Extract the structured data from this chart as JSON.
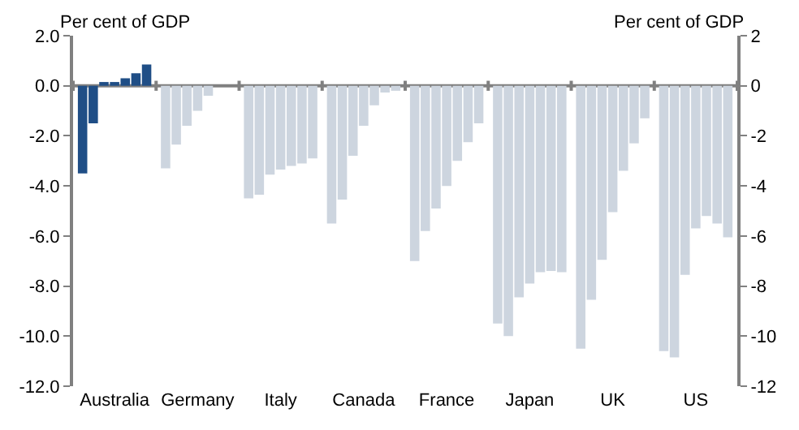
{
  "chart_data": {
    "type": "bar",
    "ylabel": "Per cent of GDP",
    "y2label": "Per cent of GDP",
    "categories": [
      "Australia",
      "Germany",
      "Italy",
      "Canada",
      "France",
      "Japan",
      "UK",
      "US"
    ],
    "series": [
      {
        "colors": [
          "#1f4e86",
          "#cdd5df",
          "#cdd5df",
          "#cdd5df",
          "#cdd5df",
          "#cdd5df",
          "#cdd5df",
          "#cdd5df"
        ],
        "values": [
          -3.5,
          -3.3,
          -4.5,
          -5.5,
          -7.0,
          -9.5,
          -10.5,
          -10.6
        ]
      },
      {
        "colors": [
          "#1f4e86",
          "#cdd5df",
          "#cdd5df",
          "#cdd5df",
          "#cdd5df",
          "#cdd5df",
          "#cdd5df",
          "#cdd5df"
        ],
        "values": [
          -1.5,
          -2.35,
          -4.35,
          -4.55,
          -5.8,
          -10.0,
          -8.55,
          -10.85
        ]
      },
      {
        "colors": [
          "#1f4e86",
          "#cdd5df",
          "#cdd5df",
          "#cdd5df",
          "#cdd5df",
          "#cdd5df",
          "#cdd5df",
          "#cdd5df"
        ],
        "values": [
          0.15,
          -1.6,
          -3.55,
          -2.8,
          -4.9,
          -8.45,
          -6.95,
          -7.55
        ]
      },
      {
        "colors": [
          "#1f4e86",
          "#cdd5df",
          "#cdd5df",
          "#cdd5df",
          "#cdd5df",
          "#cdd5df",
          "#cdd5df",
          "#cdd5df"
        ],
        "values": [
          0.15,
          -1.0,
          -3.35,
          -1.6,
          -4.0,
          -7.9,
          -5.05,
          -5.7
        ]
      },
      {
        "colors": [
          "#1f4e86",
          "#cdd5df",
          "#cdd5df",
          "#cdd5df",
          "#cdd5df",
          "#cdd5df",
          "#cdd5df",
          "#cdd5df"
        ],
        "values": [
          0.3,
          -0.4,
          -3.2,
          -0.78,
          -3.0,
          -7.45,
          -3.4,
          -5.2
        ]
      },
      {
        "colors": [
          "#1f4e86",
          "#cdd5df",
          "#cdd5df",
          "#cdd5df",
          "#cdd5df",
          "#cdd5df",
          "#cdd5df",
          "#cdd5df"
        ],
        "values": [
          0.5,
          0.0,
          -3.1,
          -0.27,
          -2.25,
          -7.4,
          -2.3,
          -5.5
        ]
      },
      {
        "colors": [
          "#1f4e86",
          "#cdd5df",
          "#cdd5df",
          "#cdd5df",
          "#cdd5df",
          "#cdd5df",
          "#cdd5df",
          "#cdd5df"
        ],
        "values": [
          0.85,
          0.0,
          -2.9,
          -0.2,
          -1.5,
          -7.45,
          -1.3,
          -6.05
        ]
      }
    ],
    "ylim": [
      -12,
      2
    ],
    "yticks": [
      {
        "value": 2,
        "label": "2.0"
      },
      {
        "value": 0,
        "label": "0.0"
      },
      {
        "value": -2,
        "label": "-2.0"
      },
      {
        "value": -4,
        "label": "-4.0"
      },
      {
        "value": -6,
        "label": "-6.0"
      },
      {
        "value": -8,
        "label": "-8.0"
      },
      {
        "value": -10,
        "label": "-10.0"
      },
      {
        "value": -12,
        "label": "-12.0"
      }
    ],
    "y2lim": [
      -12,
      2
    ],
    "y2ticks": [
      2,
      0,
      -2,
      -4,
      -6,
      -8,
      -10,
      -12
    ],
    "ref_lines": [
      {
        "axis": "y",
        "value": 0,
        "color": "#808080",
        "line_style": "solid"
      }
    ],
    "stacked": false
  }
}
